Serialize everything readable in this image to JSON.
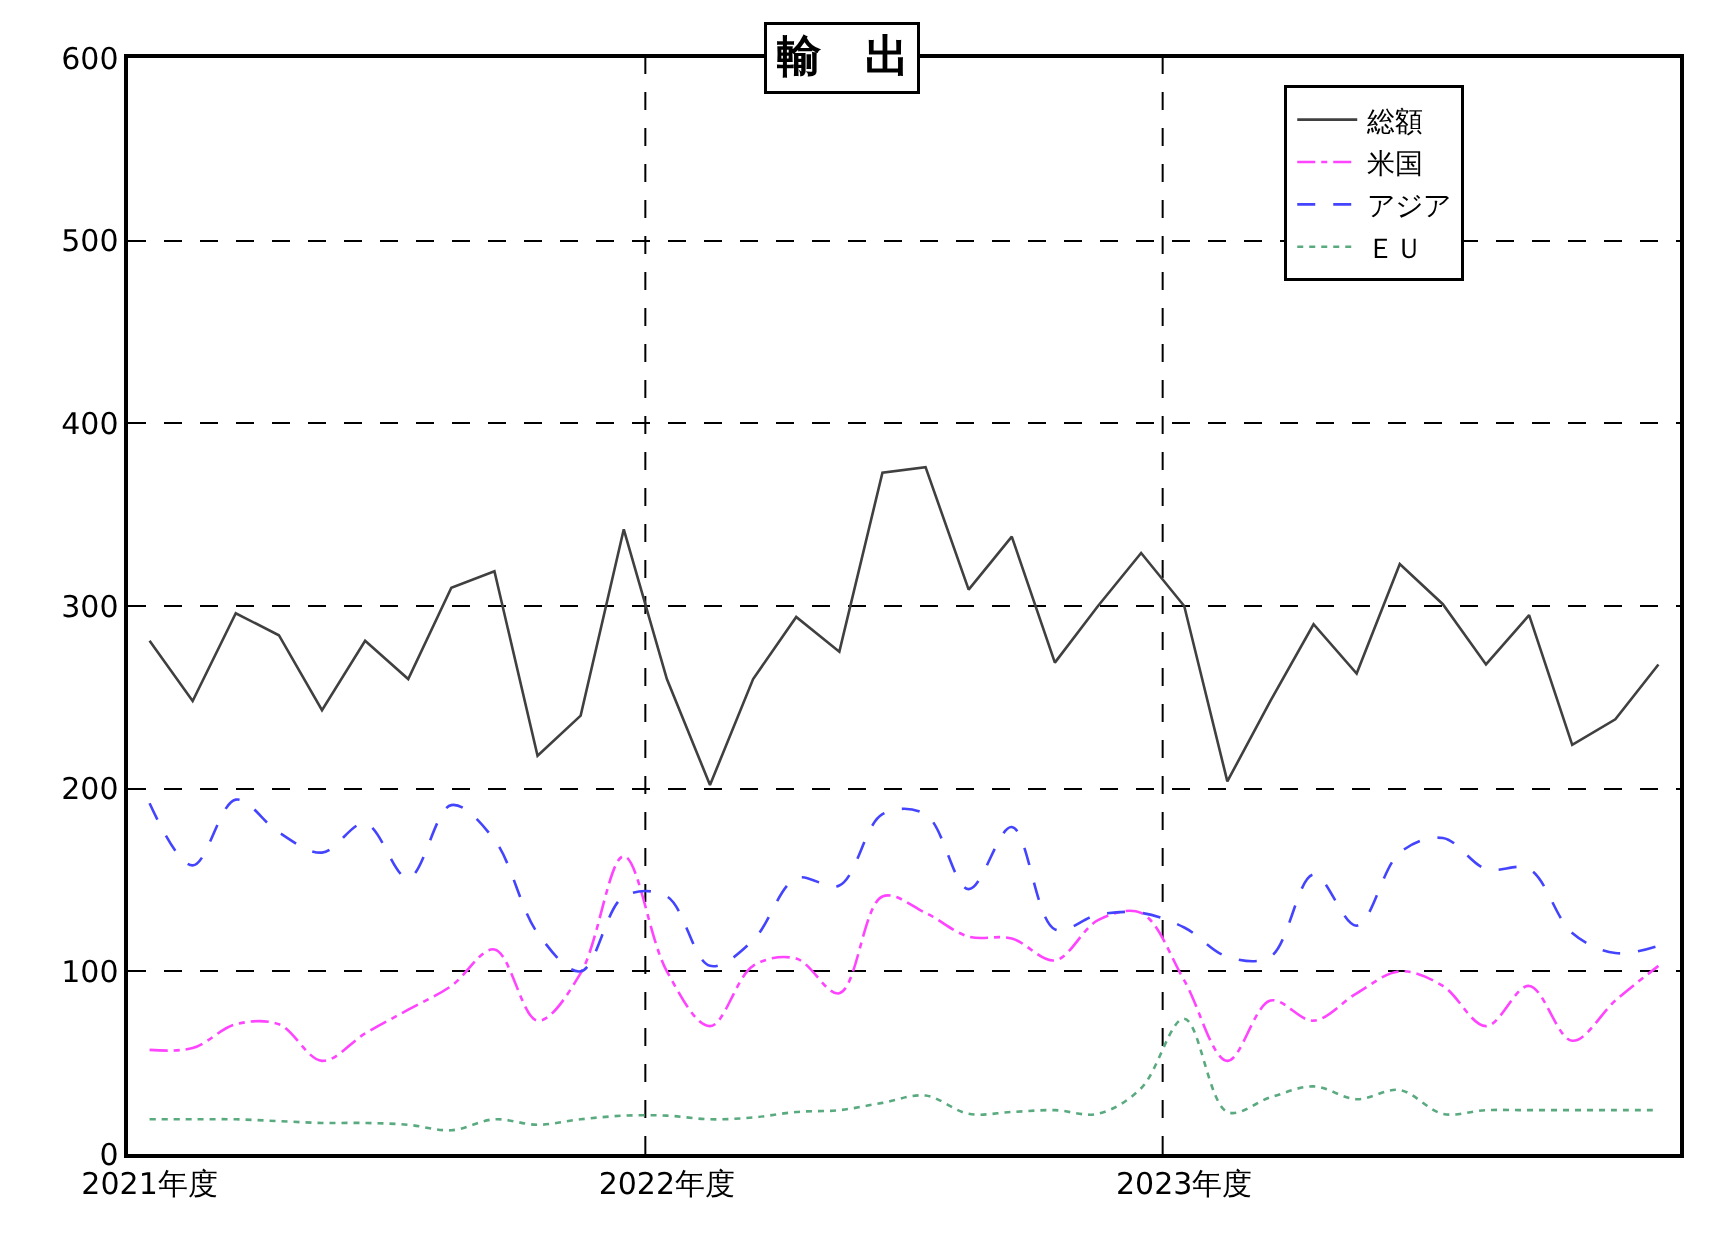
{
  "chart_data": {
    "type": "line",
    "title": "輸　出",
    "categories": [
      "2021年度",
      null,
      null,
      null,
      null,
      null,
      null,
      null,
      null,
      null,
      null,
      null,
      "2022年度",
      null,
      null,
      null,
      null,
      null,
      null,
      null,
      null,
      null,
      null,
      null,
      "2023年度",
      null,
      null,
      null,
      null,
      null,
      null,
      null,
      null,
      null,
      null,
      null
    ],
    "series": [
      {
        "name": "総額",
        "color": "#404040",
        "line_style": "solid",
        "values": [
          281,
          248,
          296,
          284,
          243,
          281,
          260,
          310,
          319,
          218,
          240,
          342,
          260,
          202,
          260,
          294,
          275,
          373,
          376,
          309,
          338,
          269,
          300,
          329,
          300,
          204,
          248,
          290,
          263,
          323,
          301,
          268,
          295,
          224,
          238,
          268
        ]
      },
      {
        "name": "米国",
        "color": "#ff44ff",
        "line_style": "dashdot",
        "values": [
          57,
          58,
          71,
          71,
          51,
          66,
          79,
          92,
          112,
          73,
          99,
          163,
          100,
          70,
          103,
          107,
          88,
          141,
          132,
          119,
          118,
          106,
          128,
          132,
          95,
          51,
          84,
          73,
          88,
          100,
          92,
          70,
          92,
          62,
          84,
          103
        ]
      },
      {
        "name": "アジア",
        "color": "#4444ff",
        "line_style": "dashed",
        "values": [
          192,
          158,
          194,
          176,
          165,
          181,
          151,
          191,
          172,
          121,
          100,
          141,
          141,
          103,
          117,
          151,
          147,
          186,
          186,
          145,
          179,
          123,
          131,
          132,
          124,
          108,
          108,
          153,
          125,
          165,
          173,
          156,
          156,
          121,
          110,
          114
        ]
      },
      {
        "name": "ＥＵ",
        "color": "#5aaa80",
        "line_style": "dotted",
        "values": [
          19,
          19,
          19,
          18,
          17,
          17,
          16,
          13,
          19,
          16,
          19,
          21,
          21,
          19,
          20,
          23,
          24,
          28,
          32,
          22,
          23,
          24,
          22,
          36,
          74,
          23,
          31,
          37,
          30,
          35,
          22,
          24,
          24,
          24,
          24,
          24
        ]
      }
    ],
    "ylim": [
      0,
      600
    ],
    "yticks": [
      0,
      100,
      200,
      300,
      400,
      500,
      600
    ],
    "grid": true,
    "legend": "top right"
  }
}
